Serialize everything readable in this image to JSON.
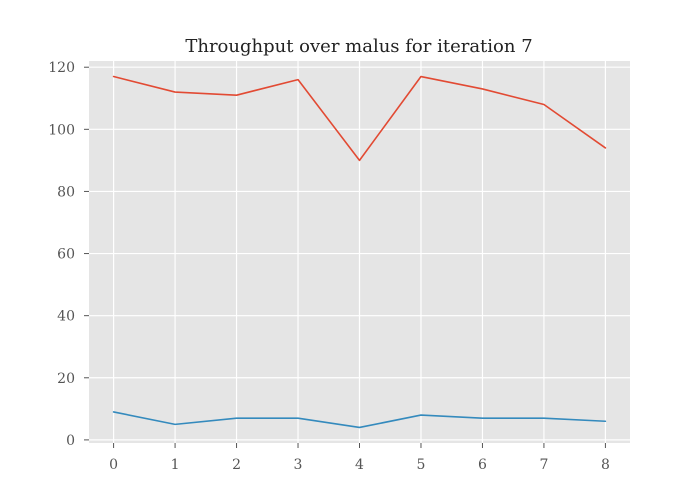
{
  "chart_data": {
    "type": "line",
    "title": "Throughput over malus for iteration 7",
    "xlabel": "",
    "ylabel": "",
    "x": [
      0,
      1,
      2,
      3,
      4,
      5,
      6,
      7,
      8
    ],
    "xlim": [
      -0.4,
      8.4
    ],
    "ylim": [
      -1,
      122
    ],
    "xticks": [
      0,
      1,
      2,
      3,
      4,
      5,
      6,
      7,
      8
    ],
    "yticks": [
      0,
      20,
      40,
      60,
      80,
      100,
      120
    ],
    "grid": true,
    "legend": "none",
    "background_color": "#e5e5e5",
    "series": [
      {
        "color": "#e24a33",
        "values": [
          117,
          112,
          111,
          116,
          90,
          117,
          113,
          108,
          94
        ]
      },
      {
        "color": "#348abd",
        "values": [
          9,
          5,
          7,
          7,
          4,
          8,
          7,
          7,
          6
        ]
      }
    ]
  }
}
